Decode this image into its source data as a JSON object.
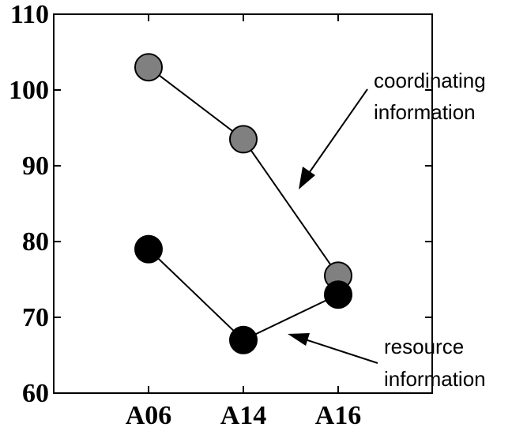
{
  "chart_data": {
    "type": "line",
    "categories": [
      "A06",
      "A14",
      "A16"
    ],
    "ylim": [
      60,
      110
    ],
    "yticks": [
      "60",
      "70",
      "80",
      "90",
      "100",
      "110"
    ],
    "grid": false,
    "series": [
      {
        "key": "coordinating",
        "values": [
          103,
          93.5,
          75.5
        ],
        "color": "#808080"
      },
      {
        "key": "resource",
        "values": [
          79,
          67,
          73
        ],
        "color": "#000000"
      }
    ],
    "annotations": [
      {
        "lines": [
          "coordinating",
          "information"
        ]
      },
      {
        "lines": [
          "resource",
          "information"
        ]
      }
    ]
  }
}
